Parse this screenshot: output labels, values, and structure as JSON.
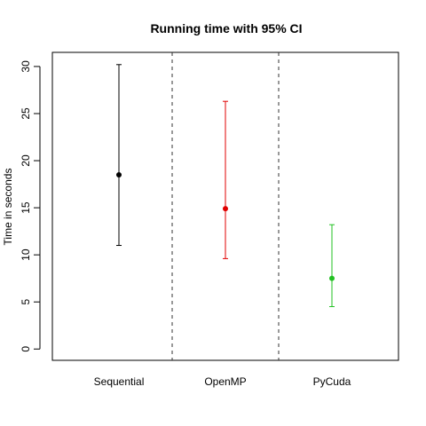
{
  "chart_data": {
    "type": "errorbar",
    "title": "Running time with 95% CI",
    "ylabel": "Time in seconds",
    "xlabel": "",
    "categories": [
      "Sequential",
      "OpenMP",
      "PyCuda"
    ],
    "series": [
      {
        "values": [
          18.5,
          14.9,
          7.5
        ],
        "lower": [
          11.0,
          9.6,
          4.5
        ],
        "upper": [
          30.2,
          26.3,
          13.2
        ]
      }
    ],
    "colors": [
      "#000000",
      "#e00000",
      "#22c022"
    ],
    "ylim": [
      -1.2,
      31.5
    ],
    "yticks": [
      0,
      5,
      10,
      15,
      20,
      25,
      30
    ],
    "separators": [
      1.5,
      2.5
    ],
    "grid": false,
    "legend": "none"
  }
}
